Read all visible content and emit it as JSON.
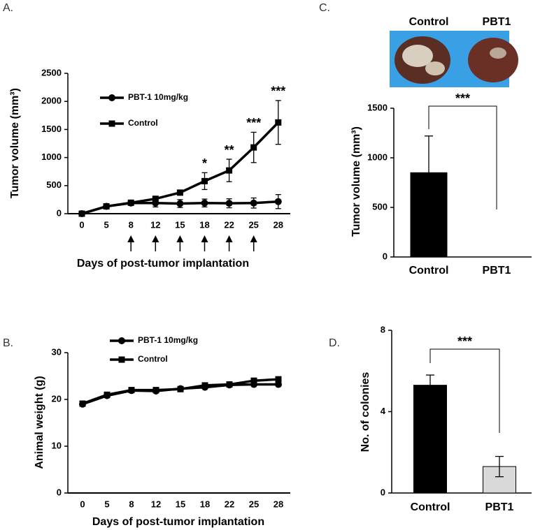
{
  "chart_data": [
    {
      "type": "line",
      "panel_label": "A.",
      "x_label": "Days of post-tumor implantation",
      "y_label": "Tumor volume (mm³)",
      "categories": [
        "0",
        "5",
        "8",
        "12",
        "15",
        "18",
        "22",
        "25",
        "28"
      ],
      "series": [
        {
          "name": "PBT-1 10mg/kg",
          "color": "#000000",
          "marker": "circle",
          "values": [
            0,
            130,
            190,
            190,
            180,
            190,
            185,
            190,
            215
          ],
          "errors": [
            10,
            30,
            40,
            70,
            70,
            70,
            80,
            90,
            125
          ]
        },
        {
          "name": "Control",
          "color": "#000000",
          "marker": "square",
          "values": [
            0,
            130,
            195,
            265,
            375,
            580,
            770,
            1180,
            1625
          ],
          "errors": [
            10,
            30,
            30,
            30,
            30,
            150,
            200,
            270,
            390
          ]
        }
      ],
      "annotations": [
        "*",
        "**",
        "***",
        "***"
      ],
      "ylim": [
        0,
        2500
      ],
      "yticks": [
        0,
        500,
        1000,
        1500,
        2000,
        2500
      ]
    },
    {
      "type": "line",
      "panel_label": "B.",
      "x_label": "Days of post-tumor implantation",
      "y_label": "Animal weight (g)",
      "categories": [
        "0",
        "5",
        "8",
        "12",
        "15",
        "18",
        "22",
        "25",
        "28"
      ],
      "series": [
        {
          "name": "PBT-1 10mg/kg",
          "color": "#000000",
          "marker": "circle",
          "values": [
            19,
            20.8,
            21.9,
            21.8,
            22.3,
            22.6,
            23.1,
            23.2,
            23.2
          ]
        },
        {
          "name": "Control",
          "color": "#000000",
          "marker": "square",
          "values": [
            19.1,
            21,
            22,
            22,
            22.2,
            23,
            23.2,
            24,
            24.3
          ]
        }
      ],
      "ylim": [
        0,
        30
      ],
      "yticks": [
        0,
        10,
        20,
        30
      ]
    },
    {
      "type": "bar",
      "panel_label": "C.",
      "image_labels": [
        "Control",
        "PBT1"
      ],
      "y_label": "Tumor volume (mm³)",
      "categories": [
        "Control",
        "PBT1"
      ],
      "values": [
        850,
        0
      ],
      "errors": [
        370,
        null
      ],
      "colors": [
        "#000000",
        "#d9d9d9"
      ],
      "annotations": [
        "***"
      ],
      "ylim": [
        0,
        1500
      ],
      "yticks": [
        0,
        500,
        1000,
        1500
      ]
    },
    {
      "type": "bar",
      "panel_label": "D.",
      "y_label": "No. of colonies",
      "categories": [
        "Control",
        "PBT1"
      ],
      "values": [
        5.3,
        1.3
      ],
      "errors": [
        0.5,
        0.5
      ],
      "colors": [
        "#000000",
        "#d9d9d9"
      ],
      "annotations": [
        "***"
      ],
      "ylim": [
        0,
        8
      ],
      "yticks": [
        0,
        4,
        8
      ]
    }
  ]
}
